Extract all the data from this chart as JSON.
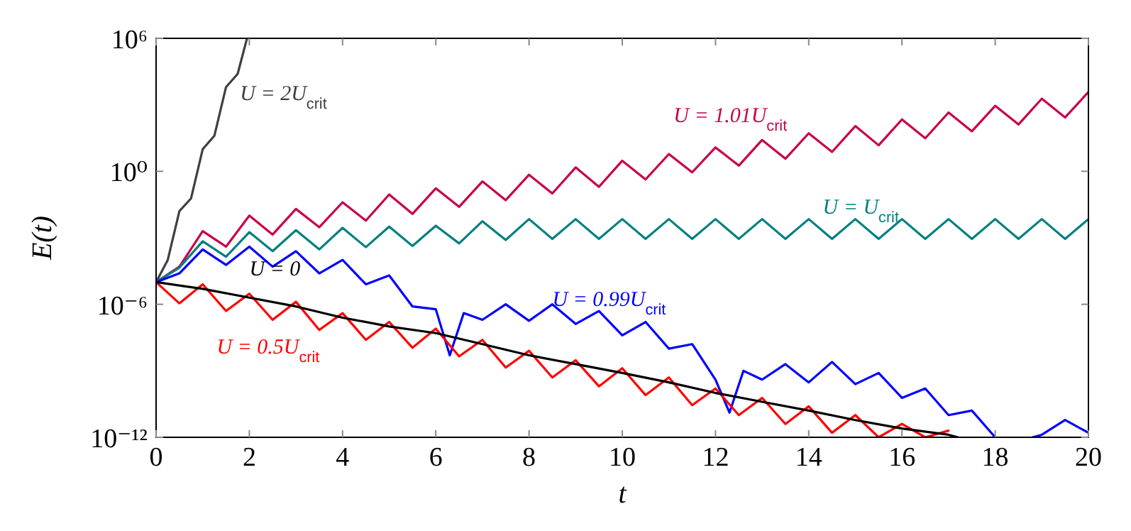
{
  "chart_data": {
    "type": "line",
    "xlabel": "t",
    "ylabel": "E(t)",
    "log": "y",
    "xlim": [
      0,
      20
    ],
    "xticks": [
      0,
      2,
      4,
      6,
      8,
      10,
      12,
      14,
      16,
      18,
      20
    ],
    "ylim": [
      1e-12,
      1000000
    ],
    "yticks": [
      {
        "value": 1e-12,
        "label": "10⁻¹²"
      },
      {
        "value": 1e-06,
        "label": "10⁻⁶"
      },
      {
        "value": 1,
        "label": "10⁰"
      },
      {
        "value": 1000000,
        "label": "10⁶"
      }
    ],
    "legend": false,
    "marker": "none",
    "line_style": "solid",
    "series": [
      {
        "name": "U = 2U$_{crit}$",
        "color": "#404040",
        "x": [
          0,
          0.25,
          0.5,
          0.75,
          1,
          1.25,
          1.5,
          1.75,
          1.95
        ],
        "values": [
          1e-05,
          0.0001,
          0.016,
          0.06,
          10,
          40,
          6300,
          25000,
          1000000
        ]
      },
      {
        "name": "U = 1.01U$_{crit}$",
        "color": "#c8004a",
        "x": [
          0,
          0.5,
          1,
          1.5,
          2,
          2.5,
          3,
          3.5,
          4,
          4.5,
          5,
          5.5,
          6,
          6.5,
          7,
          7.5,
          8,
          8.5,
          9,
          9.5,
          10,
          10.5,
          11,
          11.5,
          12,
          12.5,
          13,
          13.5,
          14,
          14.5,
          15,
          15.5,
          16,
          16.5,
          17,
          17.5,
          18,
          18.5,
          19,
          19.5,
          20
        ],
        "values": [
          1e-05,
          5e-05,
          0.002,
          0.0004,
          0.01,
          0.0014,
          0.02,
          0.003,
          0.04,
          0.006,
          0.09,
          0.012,
          0.17,
          0.025,
          0.35,
          0.05,
          0.7,
          0.1,
          1.5,
          0.2,
          3,
          0.43,
          6,
          0.9,
          12,
          1.8,
          26,
          3.7,
          52,
          7.5,
          110,
          15,
          220,
          31,
          450,
          64,
          900,
          130,
          1900,
          270,
          3800
        ]
      },
      {
        "name": "U = U$_{crit}$",
        "color": "#008080",
        "x": [
          0,
          0.5,
          1,
          1.5,
          2,
          2.5,
          3,
          3.5,
          4,
          4.5,
          5,
          5.5,
          6,
          6.5,
          7,
          7.5,
          8,
          8.5,
          9,
          9.5,
          10,
          10.5,
          11,
          11.5,
          12,
          12.5,
          13,
          13.5,
          14,
          14.5,
          15,
          15.5,
          16,
          16.5,
          17,
          17.5,
          18,
          18.5,
          19,
          19.5,
          20
        ],
        "values": [
          1e-05,
          4.5e-05,
          0.0007,
          0.00014,
          0.0018,
          0.00025,
          0.0022,
          0.0003,
          0.0028,
          0.00038,
          0.0032,
          0.00043,
          0.0035,
          0.00056,
          0.0056,
          0.0008,
          0.007,
          0.0009,
          0.007,
          0.0009,
          0.007,
          0.0009,
          0.007,
          0.0009,
          0.007,
          0.0009,
          0.007,
          0.0009,
          0.007,
          0.0009,
          0.007,
          0.0009,
          0.007,
          0.0009,
          0.007,
          0.0009,
          0.007,
          0.0009,
          0.007,
          0.0009,
          0.007
        ]
      },
      {
        "name": "U = 0.99U$_{crit}$",
        "color": "#0000ff",
        "x": [
          0,
          0.5,
          1,
          1.5,
          2,
          2.5,
          3,
          3.5,
          4,
          4.5,
          5,
          5.5,
          6,
          6.3,
          6.6,
          7,
          7.5,
          8,
          8.5,
          9,
          9.5,
          10,
          10.5,
          11,
          11.5,
          12,
          12.3,
          12.6,
          13,
          13.5,
          14,
          14.5,
          15,
          15.5,
          16,
          16.5,
          17,
          17.5,
          18,
          18.3,
          18.8,
          19,
          19.5,
          20
        ],
        "values": [
          1e-05,
          2.5e-05,
          0.0003,
          6e-05,
          0.0004,
          5e-05,
          0.00025,
          2.5e-05,
          0.0001,
          8e-06,
          2e-05,
          8e-07,
          6e-07,
          5e-09,
          4e-07,
          2e-07,
          1e-06,
          1.8e-07,
          1e-06,
          1.3e-07,
          5e-07,
          4e-08,
          1.6e-07,
          1e-08,
          1.6e-08,
          4e-10,
          1.3e-11,
          1e-09,
          4e-10,
          2e-09,
          3e-10,
          2.5e-09,
          2.5e-10,
          8e-10,
          6e-11,
          1.6e-10,
          1e-11,
          1.6e-11,
          1e-12,
          null,
          1e-12,
          1.3e-12,
          6e-12,
          1.6e-12
        ]
      },
      {
        "name": "U = 0.5U$_{crit}$",
        "color": "#ff0000",
        "x": [
          0,
          0.5,
          1,
          1.5,
          2,
          2.5,
          3,
          3.5,
          4,
          4.5,
          5,
          5.5,
          6,
          6.5,
          7,
          7.5,
          8,
          8.5,
          9,
          9.5,
          10,
          10.5,
          11,
          11.5,
          12,
          12.5,
          13,
          13.5,
          14,
          14.5,
          15,
          15.5,
          16,
          16.5,
          17
        ],
        "values": [
          1e-05,
          1.1e-06,
          8e-06,
          5e-07,
          3e-06,
          2e-07,
          1.3e-06,
          7e-08,
          4e-07,
          2.5e-08,
          1.6e-07,
          1.1e-08,
          8e-08,
          4.5e-09,
          2.5e-08,
          1.4e-09,
          8e-09,
          5e-10,
          3e-09,
          2e-10,
          1.3e-09,
          8e-11,
          5e-10,
          2.8e-11,
          1.6e-10,
          1e-11,
          6e-11,
          4e-12,
          2.5e-11,
          1.6e-12,
          1e-11,
          1e-12,
          4e-12,
          1e-12,
          2e-12
        ]
      },
      {
        "name": "U = 0",
        "color": "#000000",
        "x": [
          0,
          1,
          2,
          3,
          4,
          5,
          6,
          7,
          8,
          9,
          10,
          11,
          12,
          13,
          14,
          15,
          16,
          17,
          17.2
        ],
        "values": [
          1e-05,
          5e-06,
          2e-06,
          8e-07,
          2.5e-07,
          1e-07,
          5e-08,
          1.6e-08,
          5e-09,
          2e-09,
          8e-10,
          3e-10,
          1e-10,
          4e-11,
          1.6e-11,
          6e-12,
          2.5e-12,
          1.3e-12,
          1e-12
        ]
      }
    ]
  }
}
